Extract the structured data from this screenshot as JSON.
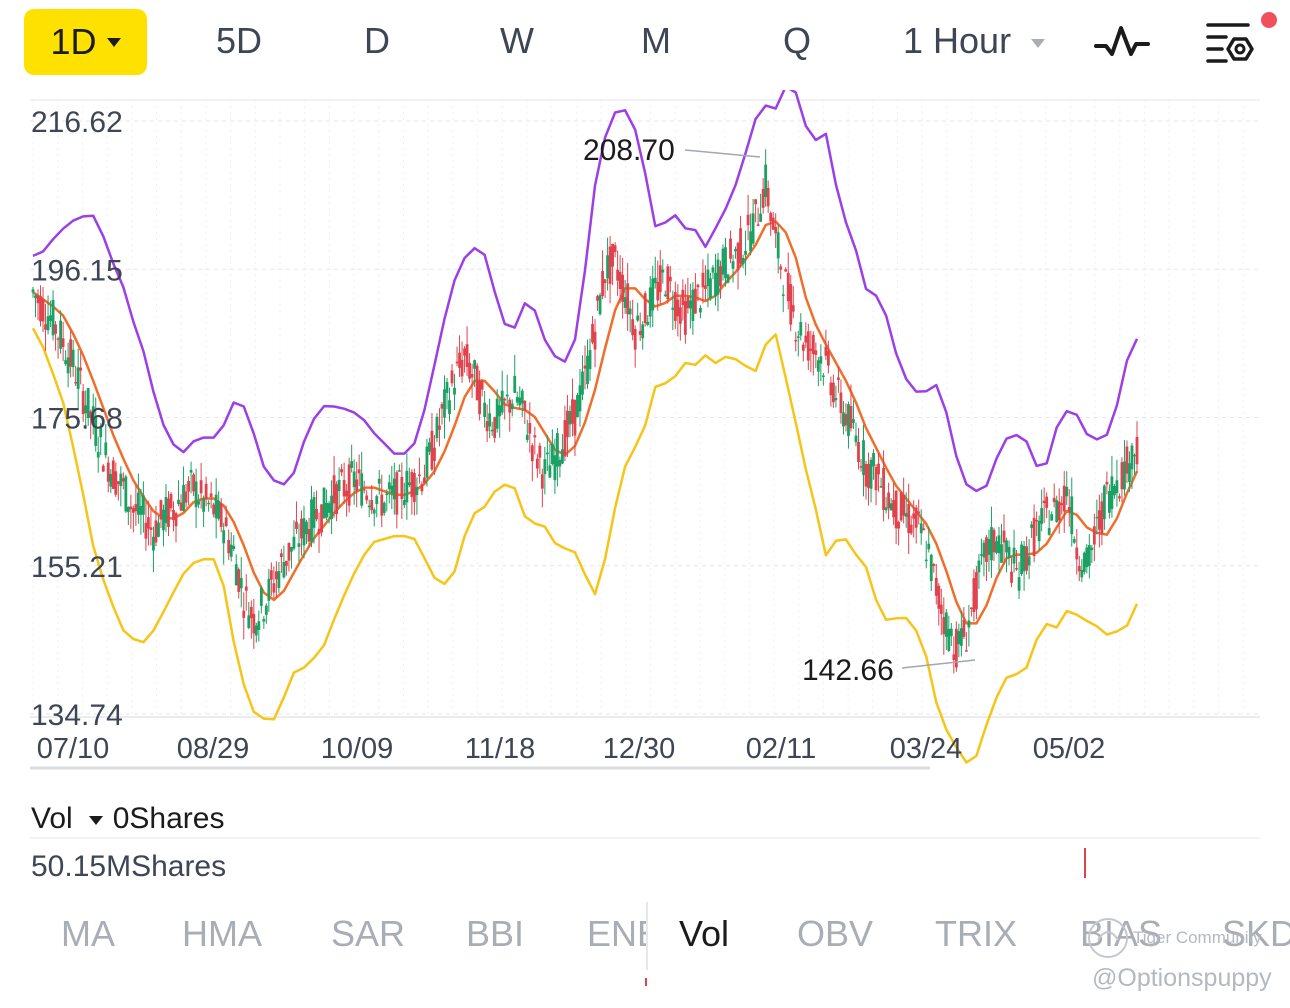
{
  "tabs": {
    "active_label": "1D",
    "items": [
      "5D",
      "D",
      "W",
      "M",
      "Q"
    ],
    "interval_label": "1 Hour"
  },
  "toolbar": {
    "chart_type_icon": "line-chart-icon",
    "settings_icon": "chart-settings-icon",
    "notification_color": "#f0505a"
  },
  "chart_data": {
    "type": "candlestick",
    "price_axis_labels": [
      "216.62",
      "196.15",
      "175.68",
      "155.21",
      "134.74"
    ],
    "ylim": [
      134.74,
      216.62
    ],
    "date_labels": [
      "07/10",
      "08/29",
      "10/09",
      "11/18",
      "12/30",
      "02/11",
      "03/24",
      "05/02"
    ],
    "annotations": [
      {
        "label": "208.70",
        "type": "high"
      },
      {
        "label": "142.66",
        "type": "low"
      }
    ],
    "series_colors": {
      "upper_band": "#9b3fe6",
      "middle_band": "#f06e2a",
      "lower_band": "#f5c518",
      "up_candle": "#1aa163",
      "down_candle": "#e0434d"
    },
    "closes": [
      193,
      191,
      189,
      186,
      183,
      179,
      175,
      171,
      168,
      166,
      163,
      162,
      160,
      162,
      163,
      165,
      166,
      164,
      163,
      161,
      157,
      151,
      148,
      150,
      153,
      156,
      158,
      160,
      162,
      163,
      165,
      166,
      167,
      166,
      165,
      164,
      165,
      166,
      167,
      168,
      172,
      177,
      181,
      184,
      181,
      177,
      175,
      177,
      179,
      176,
      171,
      168,
      170,
      173,
      176,
      181,
      188,
      196,
      197,
      193,
      188,
      190,
      193,
      195,
      192,
      190,
      192,
      193,
      195,
      197,
      198,
      200,
      203,
      208,
      200,
      194,
      189,
      186,
      185,
      183,
      179,
      176,
      173,
      169,
      168,
      165,
      163,
      162,
      161,
      158,
      152,
      147,
      144,
      146,
      152,
      157,
      159,
      157,
      154,
      157,
      160,
      162,
      163,
      166,
      158,
      155,
      160,
      165,
      167,
      169,
      172
    ]
  },
  "volume": {
    "label": "Vol",
    "current": "0Shares",
    "max": "50.15MShares"
  },
  "indicators": {
    "items": [
      "MA",
      "HMA",
      "SAR",
      "BBI",
      "ENE",
      "Vol",
      "OBV",
      "TRIX",
      "BIAS",
      "SKDJ"
    ],
    "active": "Vol"
  },
  "watermarks": {
    "community": "Tiger Community",
    "handle": "@Optionspuppy"
  }
}
